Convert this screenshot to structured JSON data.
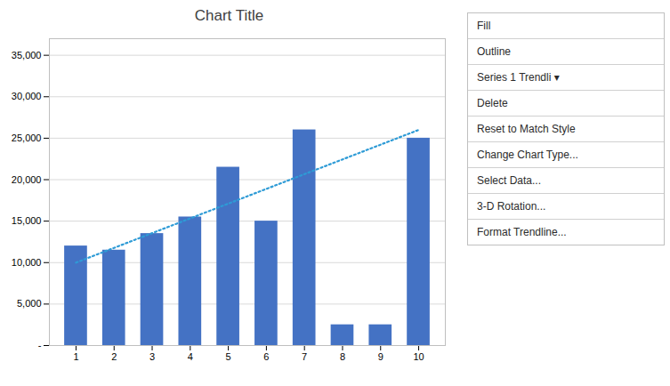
{
  "chart_data": {
    "type": "bar",
    "title": "Chart Title",
    "categories": [
      1,
      2,
      3,
      4,
      5,
      6,
      7,
      8,
      9,
      10
    ],
    "series": [
      {
        "type": "bar",
        "color": "#4472C4",
        "values": [
          12000,
          11500,
          13500,
          15500,
          21500,
          15000,
          26000,
          2500,
          2500,
          25000
        ]
      },
      {
        "type": "line",
        "color": "#2E9BD6",
        "line_style": "dotted",
        "values": [
          10000,
          11777.777777777777,
          13555.555555555555,
          15333.333333333334,
          17111.11111111111,
          18888.88888888889,
          20666.666666666668,
          22444.444444444445,
          24222.222222222223,
          26000
        ]
      }
    ],
    "xlim": [
      0.3,
      10.7
    ],
    "xticks": [
      1,
      2,
      3,
      4,
      5,
      6,
      7,
      8,
      9,
      10
    ],
    "ylim": [
      0,
      37000
    ],
    "yticks": [
      {
        "value": 0,
        "label": "-"
      },
      {
        "value": 5000,
        "label": "5,000"
      },
      {
        "value": 10000,
        "label": "10,000"
      },
      {
        "value": 15000,
        "label": "15,000"
      },
      {
        "value": 20000,
        "label": "20,000"
      },
      {
        "value": 25000,
        "label": "25,000"
      },
      {
        "value": 30000,
        "label": "30,000"
      },
      {
        "value": 35000,
        "label": "35,000"
      }
    ],
    "grid": true,
    "annotations": [
      "Fill",
      "Outline",
      "Series 1 Trendli ▾",
      "Delete",
      "Reset to Match Style",
      "Change Chart Type...",
      "Select Data...",
      "3-D Rotation...",
      "Format Trendline..."
    ]
  }
}
